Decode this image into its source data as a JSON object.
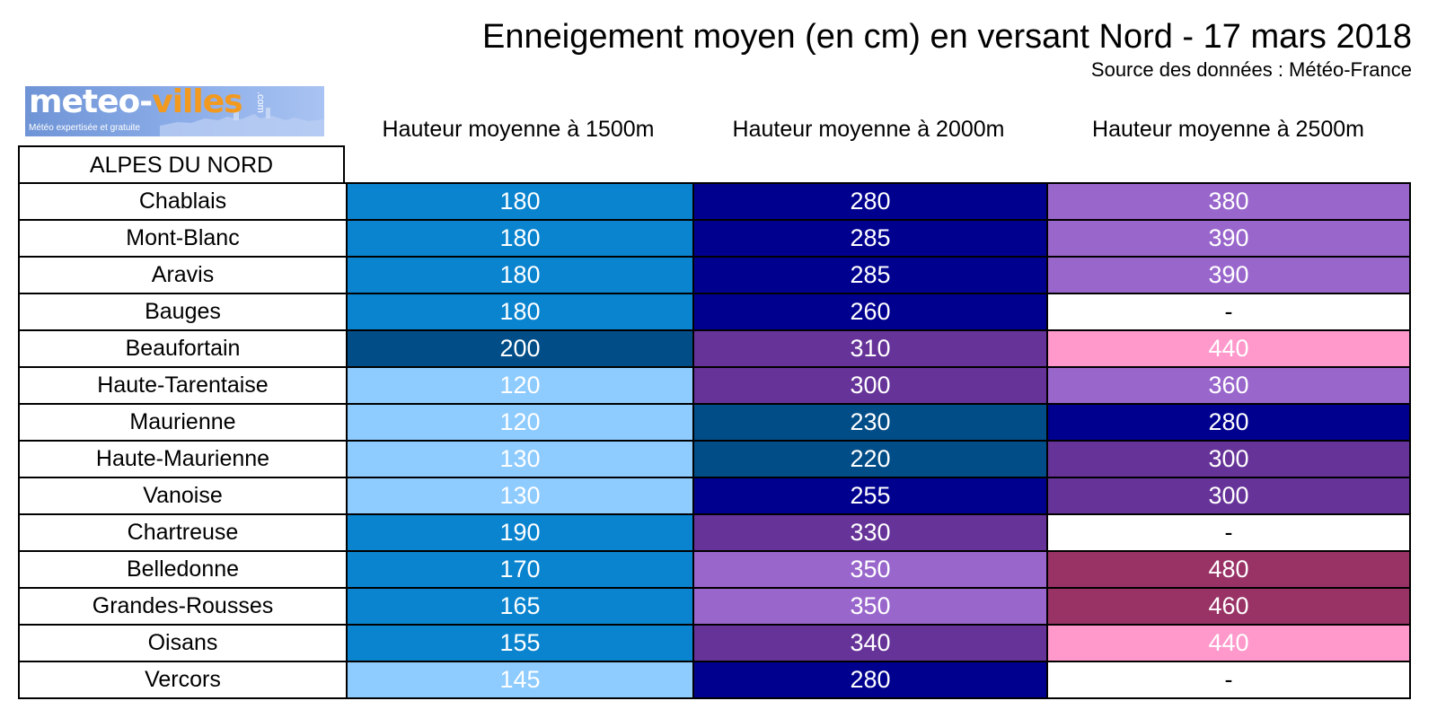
{
  "title": "Enneigement moyen (en cm) en versant Nord - 17 mars 2018",
  "source": "Source des données : Météo-France",
  "logo": {
    "word1": "meteo-",
    "word2": "villes",
    "dotcom": ".com",
    "tagline": "Météo expertisée et gratuite"
  },
  "region": "ALPES DU NORD",
  "colors": {
    "empty": "#ffffff",
    "light_blue": "#8ecbff",
    "blue": "#0a84cf",
    "dark_teal": "#004d87",
    "navy": "#00008f",
    "purple": "#663399",
    "lavender": "#9966cc",
    "pink": "#ff99cc",
    "plum": "#993366"
  },
  "chart_data": {
    "type": "table",
    "title": "Enneigement moyen (en cm) en versant Nord - 17 mars 2018",
    "columns": [
      "Hauteur moyenne à 1500m",
      "Hauteur moyenne à 2000m",
      "Hauteur moyenne à 2500m"
    ],
    "rows": [
      {
        "name": "Chablais",
        "values": [
          "180",
          "280",
          "380"
        ],
        "colors": [
          "blue",
          "navy",
          "lavender"
        ]
      },
      {
        "name": "Mont-Blanc",
        "values": [
          "180",
          "285",
          "390"
        ],
        "colors": [
          "blue",
          "navy",
          "lavender"
        ]
      },
      {
        "name": "Aravis",
        "values": [
          "180",
          "285",
          "390"
        ],
        "colors": [
          "blue",
          "navy",
          "lavender"
        ]
      },
      {
        "name": "Bauges",
        "values": [
          "180",
          "260",
          "-"
        ],
        "colors": [
          "blue",
          "navy",
          "empty"
        ]
      },
      {
        "name": "Beaufortain",
        "values": [
          "200",
          "310",
          "440"
        ],
        "colors": [
          "dark_teal",
          "purple",
          "pink"
        ]
      },
      {
        "name": "Haute-Tarentaise",
        "values": [
          "120",
          "300",
          "360"
        ],
        "colors": [
          "light_blue",
          "purple",
          "lavender"
        ]
      },
      {
        "name": "Maurienne",
        "values": [
          "120",
          "230",
          "280"
        ],
        "colors": [
          "light_blue",
          "dark_teal",
          "navy"
        ]
      },
      {
        "name": "Haute-Maurienne",
        "values": [
          "130",
          "220",
          "300"
        ],
        "colors": [
          "light_blue",
          "dark_teal",
          "purple"
        ]
      },
      {
        "name": "Vanoise",
        "values": [
          "130",
          "255",
          "300"
        ],
        "colors": [
          "light_blue",
          "navy",
          "purple"
        ]
      },
      {
        "name": "Chartreuse",
        "values": [
          "190",
          "330",
          "-"
        ],
        "colors": [
          "blue",
          "purple",
          "empty"
        ]
      },
      {
        "name": "Belledonne",
        "values": [
          "170",
          "350",
          "480"
        ],
        "colors": [
          "blue",
          "lavender",
          "plum"
        ]
      },
      {
        "name": "Grandes-Rousses",
        "values": [
          "165",
          "350",
          "460"
        ],
        "colors": [
          "blue",
          "lavender",
          "plum"
        ]
      },
      {
        "name": "Oisans",
        "values": [
          "155",
          "340",
          "440"
        ],
        "colors": [
          "blue",
          "purple",
          "pink"
        ]
      },
      {
        "name": "Vercors",
        "values": [
          "145",
          "280",
          "-"
        ],
        "colors": [
          "light_blue",
          "navy",
          "empty"
        ]
      }
    ]
  }
}
